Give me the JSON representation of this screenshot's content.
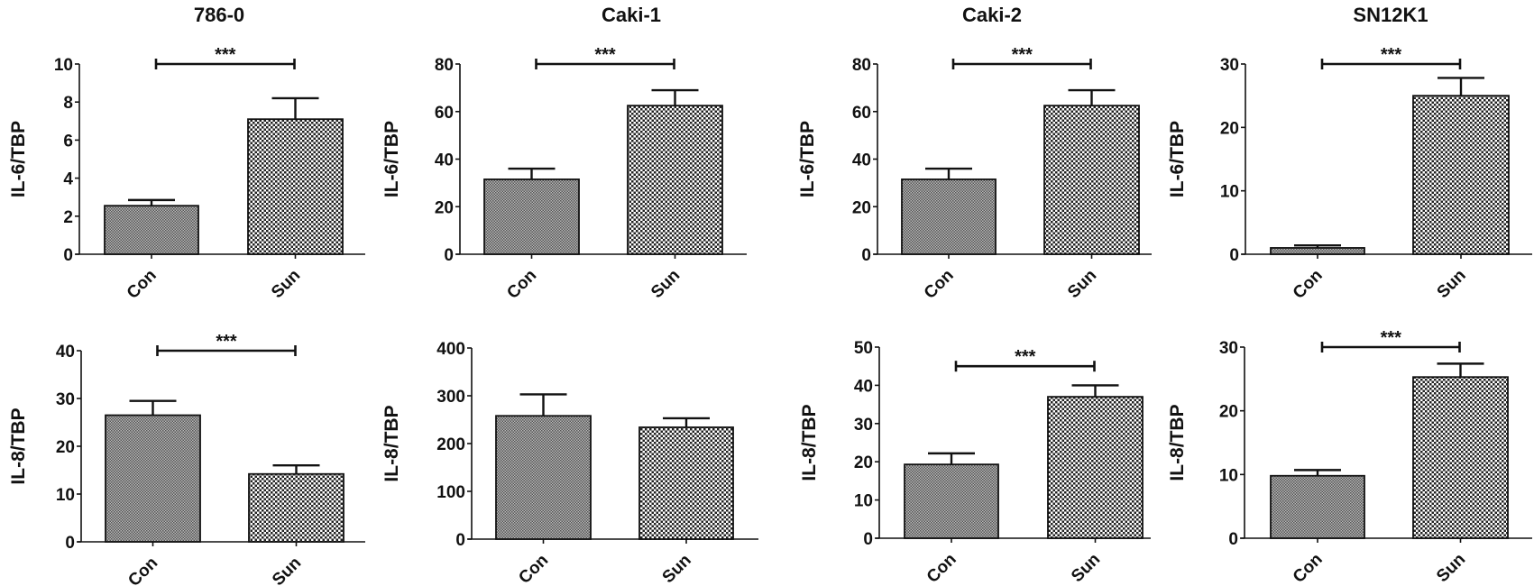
{
  "chart_data": [
    {
      "type": "bar",
      "title": "786-0",
      "ylabel": "IL-6/TBP",
      "categories": [
        "Con",
        "Sun"
      ],
      "values": [
        2.55,
        7.1
      ],
      "errors": [
        0.3,
        1.1
      ],
      "ylim": [
        0,
        10
      ],
      "yticks": [
        0,
        2,
        4,
        6,
        8,
        10
      ],
      "significance": "***"
    },
    {
      "type": "bar",
      "title": "Caki-1",
      "ylabel": "IL-6/TBP",
      "categories": [
        "Con",
        "Sun"
      ],
      "values": [
        31.5,
        62.5
      ],
      "errors": [
        4.5,
        6.5
      ],
      "ylim": [
        0,
        80
      ],
      "yticks": [
        0,
        20,
        40,
        60,
        80
      ],
      "significance": "***"
    },
    {
      "type": "bar",
      "title": "Caki-2",
      "ylabel": "IL-6/TBP",
      "categories": [
        "Con",
        "Sun"
      ],
      "values": [
        31.5,
        62.5
      ],
      "errors": [
        4.5,
        6.5
      ],
      "ylim": [
        0,
        80
      ],
      "yticks": [
        0,
        20,
        40,
        60,
        80
      ],
      "significance": "***"
    },
    {
      "type": "bar",
      "title": "SN12K1",
      "ylabel": "IL-6/TBP",
      "categories": [
        "Con",
        "Sun"
      ],
      "values": [
        1.0,
        25.0
      ],
      "errors": [
        0.4,
        2.8
      ],
      "ylim": [
        0,
        30
      ],
      "yticks": [
        0,
        10,
        20,
        30
      ],
      "significance": "***"
    },
    {
      "type": "bar",
      "title": "",
      "ylabel": "IL-8/TBP",
      "categories": [
        "Con",
        "Sun"
      ],
      "values": [
        26.5,
        14.2
      ],
      "errors": [
        3.0,
        1.8
      ],
      "ylim": [
        0,
        40
      ],
      "yticks": [
        0,
        10,
        20,
        30,
        40
      ],
      "significance": "***"
    },
    {
      "type": "bar",
      "title": "",
      "ylabel": "IL-8/TBP",
      "categories": [
        "Con",
        "Sun"
      ],
      "values": [
        258,
        234
      ],
      "errors": [
        45,
        19
      ],
      "ylim": [
        0,
        400
      ],
      "yticks": [
        0,
        100,
        200,
        300,
        400
      ],
      "significance": ""
    },
    {
      "type": "bar",
      "title": "",
      "ylabel": "IL-8/TBP",
      "categories": [
        "Con",
        "Sun"
      ],
      "values": [
        19.3,
        37.0
      ],
      "errors": [
        2.9,
        3.0
      ],
      "ylim": [
        0,
        50
      ],
      "yticks": [
        0,
        10,
        20,
        30,
        40,
        50
      ],
      "significance": "***",
      "significance_level": 45
    },
    {
      "type": "bar",
      "title": "",
      "ylabel": "IL-8/TBP",
      "categories": [
        "Con",
        "Sun"
      ],
      "values": [
        9.8,
        25.3
      ],
      "errors": [
        0.9,
        2.1
      ],
      "ylim": [
        0,
        30
      ],
      "yticks": [
        0,
        10,
        20,
        30
      ],
      "significance": "***"
    }
  ],
  "colors": {
    "ink": "#111111",
    "con_fill": "#8a8a8a",
    "sun_fill": "#ffffff"
  }
}
